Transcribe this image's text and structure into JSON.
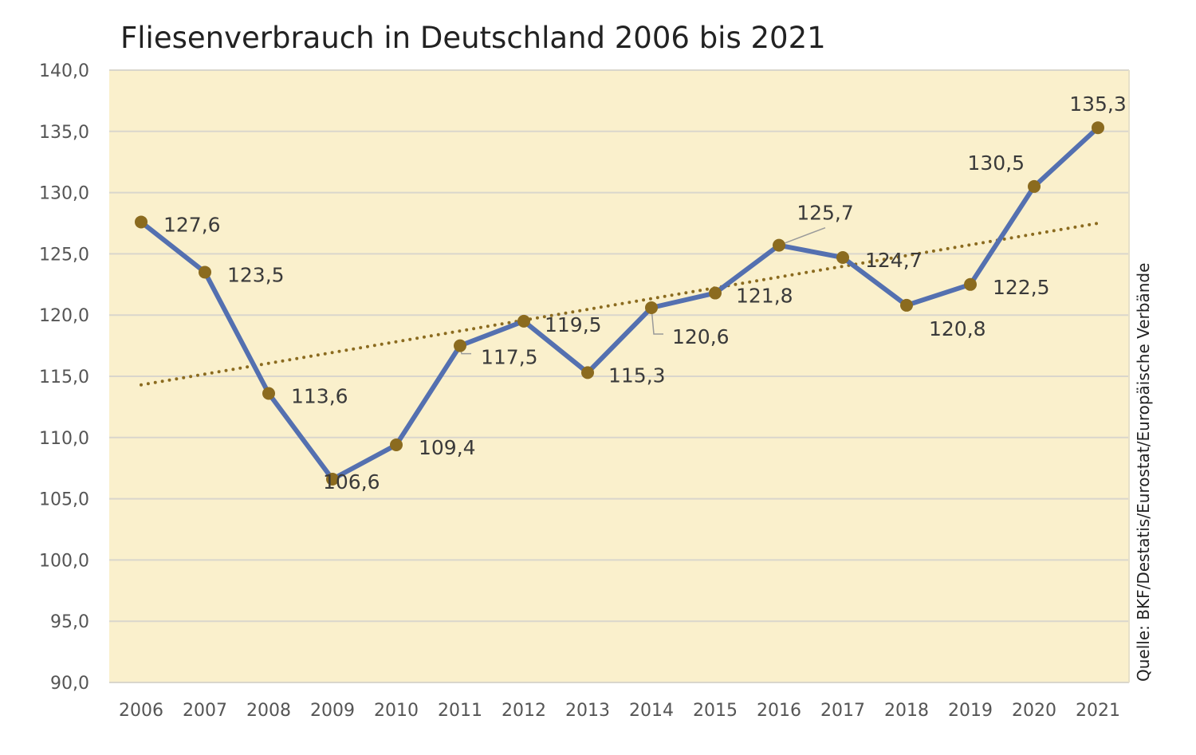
{
  "chart_data": {
    "type": "line",
    "title": "Fliesenverbrauch in Deutschland 2006 bis 2021",
    "xlabel": "",
    "ylabel": "",
    "source": "Quelle: BKF/Destatis/Eurostat/Europäische Verbände",
    "categories": [
      "2006",
      "2007",
      "2008",
      "2009",
      "2010",
      "2011",
      "2012",
      "2013",
      "2014",
      "2015",
      "2016",
      "2017",
      "2018",
      "2019",
      "2020",
      "2021"
    ],
    "series": [
      {
        "name": "Fliesenverbrauch",
        "values": [
          127.6,
          123.5,
          113.6,
          106.6,
          109.4,
          117.5,
          119.5,
          115.3,
          120.6,
          121.8,
          125.7,
          124.7,
          120.8,
          122.5,
          130.5,
          135.3
        ],
        "labels": [
          "127,6",
          "123,5",
          "113,6",
          "106,6",
          "109,4",
          "117,5",
          "119,5",
          "115,3",
          "120,6",
          "121,8",
          "125,7",
          "124,7",
          "120,8",
          "122,5",
          "130,5",
          "135,3"
        ],
        "line_color": "#5470b0",
        "marker_color": "#8b6b1f"
      }
    ],
    "trendline": {
      "type": "linear",
      "start": 114.3,
      "end": 127.5,
      "color": "#8b6b1f",
      "style": "dotted"
    },
    "ylim": [
      90,
      140
    ],
    "yticks": [
      90,
      95,
      100,
      105,
      110,
      115,
      120,
      125,
      130,
      135,
      140
    ],
    "ytick_labels": [
      "90,0",
      "95,0",
      "100,0",
      "105,0",
      "110,0",
      "115,0",
      "120,0",
      "125,0",
      "130,0",
      "135,0",
      "140,0"
    ],
    "grid": true,
    "legend": "none",
    "plot_background": "#faf0cc"
  }
}
